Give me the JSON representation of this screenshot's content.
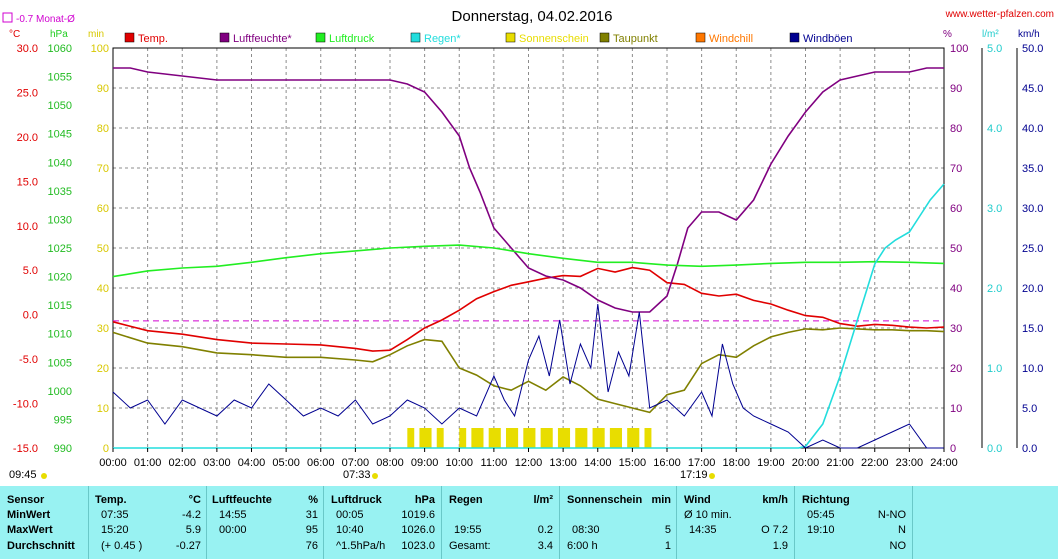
{
  "header": {
    "title": "Donnerstag, 04.02.2016",
    "website": "www.wetter-pfalzen.com",
    "monthly_label": "-0.7 Monat-Ø",
    "unit_temp": "°C",
    "unit_pressure": "hPa",
    "unit_minutes": "min",
    "unit_percent": "%",
    "unit_rain": "l/m²",
    "unit_wind": "km/h"
  },
  "legend": [
    {
      "label": "Temp.",
      "color": "#e00000"
    },
    {
      "label": "Luftfeuchte*",
      "color": "#800080"
    },
    {
      "label": "Luftdruck",
      "color": "#22ee22"
    },
    {
      "label": "Regen*",
      "color": "#22dddd"
    },
    {
      "label": "Sonnenschein",
      "color": "#e8dd00"
    },
    {
      "label": "Taupunkt",
      "color": "#808000"
    },
    {
      "label": "Windchill",
      "color": "#ff7700"
    },
    {
      "label": "Windböen",
      "color": "#000090"
    }
  ],
  "markers": {
    "sunrise": "07:33",
    "sunset": "17:19",
    "sun_hours": "09:45"
  },
  "chart_data": {
    "type": "line",
    "x_labels": [
      "00:00",
      "01:00",
      "02:00",
      "03:00",
      "04:00",
      "05:00",
      "06:00",
      "07:00",
      "08:00",
      "09:00",
      "10:00",
      "11:00",
      "12:00",
      "13:00",
      "14:00",
      "15:00",
      "16:00",
      "17:00",
      "18:00",
      "19:00",
      "20:00",
      "21:00",
      "22:00",
      "23:00",
      "24:00"
    ],
    "xlim": [
      0,
      24
    ],
    "axes": {
      "temp": {
        "ticks": [
          "30.0",
          "25.0",
          "20.0",
          "15.0",
          "10.0",
          "5.0",
          "0.0",
          "-5.0",
          "-10.0",
          "-15.0"
        ],
        "range": [
          -15,
          30
        ]
      },
      "pressure": {
        "ticks": [
          "1060",
          "1055",
          "1050",
          "1045",
          "1040",
          "1035",
          "1030",
          "1025",
          "1020",
          "1015",
          "1010",
          "1005",
          "1000",
          "995",
          "990"
        ],
        "range": [
          990,
          1060
        ]
      },
      "minutes": {
        "ticks": [
          "100",
          "90",
          "80",
          "70",
          "60",
          "50",
          "40",
          "30",
          "20",
          "10",
          "0"
        ],
        "range": [
          0,
          100
        ]
      },
      "humidity": {
        "ticks": [
          "100",
          "90",
          "80",
          "70",
          "60",
          "50",
          "40",
          "30",
          "20",
          "10",
          "0"
        ],
        "range": [
          0,
          100
        ]
      },
      "rain": {
        "ticks": [
          "5.0",
          "4.0",
          "3.0",
          "2.0",
          "1.0",
          "0.0"
        ],
        "range": [
          0,
          5
        ]
      },
      "wind": {
        "ticks": [
          "50.0",
          "45.0",
          "40.0",
          "35.0",
          "30.0",
          "25.0",
          "20.0",
          "15.0",
          "10.0",
          "5.0",
          "0.0"
        ],
        "range": [
          0,
          50
        ]
      }
    },
    "monthly_mean_temp": -0.7,
    "series": [
      {
        "name": "Temp.",
        "axis": "temp",
        "color": "#e00000",
        "x": [
          0,
          1,
          2,
          3,
          4,
          5,
          6,
          7,
          7.5,
          8,
          8.5,
          9,
          9.5,
          10,
          10.5,
          11,
          11.5,
          12,
          12.5,
          13,
          13.5,
          14,
          14.5,
          15,
          15.5,
          16,
          16.5,
          17,
          17.5,
          18,
          18.5,
          19,
          19.5,
          20,
          20.5,
          21,
          21.5,
          22,
          22.5,
          23,
          23.5,
          24
        ],
        "y": [
          -0.8,
          -1.8,
          -2.2,
          -2.8,
          -3.2,
          -3.3,
          -3.4,
          -3.8,
          -4.1,
          -4.0,
          -2.8,
          -1.5,
          -0.6,
          0.5,
          1.8,
          2.6,
          3.3,
          3.7,
          4.1,
          4.4,
          4.3,
          5.2,
          4.8,
          5.3,
          5.0,
          3.6,
          3.4,
          2.4,
          2.1,
          2.3,
          1.6,
          1.2,
          0.5,
          -0.1,
          -0.3,
          -1.0,
          -1.3,
          -1.1,
          -1.2,
          -1.4,
          -1.5,
          -1.4
        ]
      },
      {
        "name": "Taupunkt",
        "axis": "temp",
        "color": "#808000",
        "x": [
          0,
          1,
          2,
          3,
          4,
          5,
          6,
          7,
          7.5,
          8,
          8.5,
          9,
          9.5,
          10,
          10.5,
          11,
          11.5,
          12,
          12.5,
          13,
          13.5,
          14,
          14.5,
          15,
          15.5,
          16,
          16.5,
          17,
          17.5,
          18,
          18.5,
          19,
          19.5,
          20,
          20.5,
          21,
          21.5,
          22,
          22.5,
          23,
          23.5,
          24
        ],
        "y": [
          -2.0,
          -3.2,
          -3.6,
          -4.3,
          -4.5,
          -4.8,
          -4.8,
          -5.1,
          -5.3,
          -4.5,
          -3.5,
          -2.8,
          -3.0,
          -6.0,
          -6.8,
          -8.0,
          -8.5,
          -7.5,
          -8.5,
          -7.0,
          -8.0,
          -9.5,
          -10.0,
          -10.5,
          -11.0,
          -9.0,
          -8.5,
          -5.5,
          -4.5,
          -4.8,
          -3.5,
          -2.5,
          -2.0,
          -1.6,
          -1.7,
          -1.5,
          -1.6,
          -1.7,
          -1.7,
          -1.8,
          -1.8,
          -1.9
        ]
      },
      {
        "name": "Luftfeuchte*",
        "axis": "humidity",
        "color": "#800080",
        "x": [
          0,
          0.5,
          1,
          2,
          3,
          4,
          5,
          6,
          7,
          8,
          8.5,
          9,
          9.5,
          10,
          10.3,
          10.6,
          11,
          11.5,
          12,
          12.5,
          13,
          13.5,
          14,
          14.5,
          15,
          15.5,
          16,
          16.3,
          16.6,
          17,
          17.5,
          18,
          18.5,
          19,
          19.5,
          20,
          20.5,
          21,
          21.5,
          22,
          22.5,
          23,
          23.5,
          24
        ],
        "y": [
          95,
          95,
          94,
          93,
          92,
          92,
          92,
          92,
          92,
          92,
          91,
          89,
          84,
          78,
          70,
          64,
          55,
          50,
          45,
          43,
          42,
          40,
          37,
          35,
          34,
          34,
          38,
          46,
          55,
          59,
          59,
          57,
          62,
          71,
          78,
          84,
          89,
          92,
          93,
          94,
          94,
          94,
          95,
          95
        ]
      },
      {
        "name": "Luftdruck",
        "axis": "pressure",
        "color": "#22ee22",
        "x": [
          0,
          1,
          2,
          3,
          4,
          5,
          6,
          7,
          8,
          9,
          10,
          11,
          12,
          13,
          14,
          15,
          16,
          17,
          18,
          19,
          20,
          21,
          22,
          23,
          24
        ],
        "y": [
          1020.0,
          1021.0,
          1021.5,
          1021.8,
          1022.5,
          1023.3,
          1024.0,
          1024.5,
          1025.0,
          1025.3,
          1025.5,
          1025.0,
          1024.0,
          1023.2,
          1022.5,
          1022.5,
          1022.0,
          1021.8,
          1022.0,
          1022.3,
          1022.5,
          1022.5,
          1022.6,
          1022.5,
          1022.3
        ]
      },
      {
        "name": "Regen*",
        "axis": "rain",
        "color": "#22dddd",
        "x": [
          0,
          19.8,
          20,
          20.5,
          21,
          21.5,
          22,
          22.3,
          22.6,
          23,
          23.3,
          23.6,
          24
        ],
        "y": [
          0,
          0,
          0.02,
          0.3,
          0.9,
          1.6,
          2.3,
          2.5,
          2.6,
          2.7,
          2.9,
          3.1,
          3.3
        ]
      },
      {
        "name": "Windböen",
        "axis": "wind",
        "color": "#000090",
        "x": [
          0,
          0.5,
          1,
          1.5,
          2,
          2.5,
          3,
          3.5,
          4,
          4.5,
          5,
          5.5,
          6,
          6.5,
          7,
          7.5,
          8,
          8.5,
          9,
          9.5,
          10,
          10.5,
          11,
          11.3,
          11.6,
          12,
          12.3,
          12.6,
          12.9,
          13.2,
          13.5,
          13.8,
          14,
          14.3,
          14.6,
          14.9,
          15.2,
          15.5,
          16,
          16.5,
          17,
          17.3,
          17.6,
          17.9,
          18.2,
          18.5,
          19,
          19.5,
          20,
          20.5,
          21,
          21.5,
          22,
          22.5,
          23,
          23.5,
          24
        ],
        "y": [
          7,
          5,
          6,
          3,
          6,
          5,
          4,
          6,
          5,
          8,
          6,
          4,
          5,
          4,
          6,
          3,
          4,
          6,
          5,
          3,
          5,
          4,
          9,
          6,
          4,
          11,
          14,
          9,
          16,
          8,
          13,
          10,
          18,
          7,
          12,
          9,
          17,
          5,
          6,
          4,
          7,
          4,
          13,
          8,
          5,
          4,
          3,
          2,
          0,
          1,
          0,
          0,
          1,
          2,
          3,
          0,
          0
        ]
      }
    ],
    "bars": {
      "name": "Sonnenschein",
      "axis": "minutes",
      "color": "#e8dd00",
      "x": [
        8.5,
        9.0,
        10.0,
        10.5,
        11.0,
        11.5,
        12.0,
        12.5,
        13.0,
        13.5,
        14.0,
        14.5,
        15.0
      ],
      "y": [
        5,
        5,
        5,
        5,
        5,
        5,
        5,
        5,
        5,
        5,
        5,
        5,
        5
      ]
    }
  },
  "stats": {
    "sensor": {
      "header": "Sensor",
      "rows": [
        "MinWert",
        "MaxWert",
        "Durchschnitt"
      ]
    },
    "temp": {
      "header": "Temp.",
      "unit": "°C",
      "rows": [
        [
          "07:35",
          "-4.2"
        ],
        [
          "15:20",
          "5.9"
        ],
        [
          "(+ 0.45 )",
          "-0.27"
        ]
      ]
    },
    "humidity": {
      "header": "Luftfeuchte",
      "unit": "%",
      "rows": [
        [
          "14:55",
          "31"
        ],
        [
          "00:00",
          "95"
        ],
        [
          "",
          "76"
        ]
      ]
    },
    "pressure": {
      "header": "Luftdruck",
      "unit": "hPa",
      "rows": [
        [
          "00:05",
          "1019.6"
        ],
        [
          "10:40",
          "1026.0"
        ],
        [
          "^1.5hPa/h",
          "1023.0"
        ]
      ]
    },
    "rain": {
      "header": "Regen",
      "unit": "l/m²",
      "rows": [
        [
          "",
          ""
        ],
        [
          "19:55",
          "0.2"
        ],
        [
          "Gesamt:",
          "3.4"
        ]
      ]
    },
    "sun": {
      "header": "Sonnenschein",
      "unit": "min",
      "rows": [
        [
          "",
          ""
        ],
        [
          "08:30",
          "5"
        ],
        [
          "6:00 h",
          "1"
        ]
      ]
    },
    "wind": {
      "header": "Wind",
      "unit": "km/h",
      "rows": [
        [
          "Ø 10 min.",
          ""
        ],
        [
          "14:35",
          "O 7.2"
        ],
        [
          "",
          "1.9"
        ]
      ]
    },
    "direction": {
      "header": "Richtung",
      "rows": [
        [
          "05:45",
          "N-NO"
        ],
        [
          "19:10",
          "N"
        ],
        [
          "",
          "NO"
        ]
      ]
    }
  }
}
